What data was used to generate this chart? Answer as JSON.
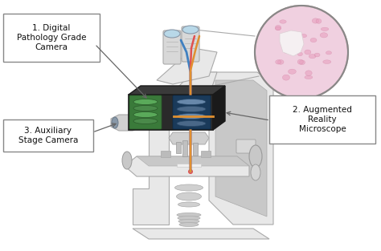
{
  "bg_color": "#ffffff",
  "label1_text": "1. Digital\nPathology Grade\nCamera",
  "label2_text": "2. Augmented\nReality\nMicroscope",
  "label3_text": "3. Auxiliary\nStage Camera",
  "box_edge_color": "#888888",
  "box_face_color": "#ffffff",
  "arrow_color": "#666666",
  "body_color": "#e8e8e8",
  "body_edge": "#aaaaaa",
  "dark_body": "#c8c8c8",
  "lens_box_dark": "#2a2a2a",
  "lens_box_edge": "#1a1a1a",
  "lens_green": "#6db36d",
  "lens_inner": "#a8d8a8",
  "lens_blue_right": "#a0b8d0",
  "beam_red": "#e05050",
  "beam_blue": "#4080c0",
  "beam_orange": "#e09030",
  "circle_edge": "#aaaaaa",
  "circle_bg": "#e8c0d0"
}
